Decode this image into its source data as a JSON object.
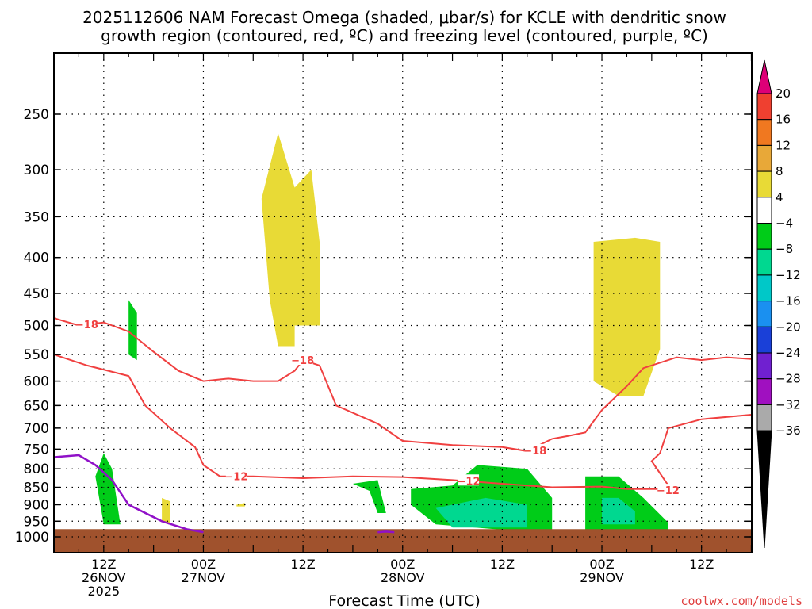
{
  "chart_data": {
    "type": "heatmap",
    "title_lines": [
      "2025112606 NAM Forecast Omega (shaded, μbar/s) for KCLE with dendritic snow",
      "growth region (contoured, red, ºC) and freezing level (contoured, purple, ºC)"
    ],
    "xlabel": "Forecast Time (UTC)",
    "ylabel": "",
    "credit": "coolwx.com/models",
    "y_axis": {
      "scale": "pressure",
      "units": "hPa",
      "range": [
        1000,
        200
      ],
      "ticks": [
        250,
        300,
        350,
        400,
        450,
        500,
        550,
        600,
        650,
        700,
        750,
        800,
        850,
        900,
        950,
        1000
      ]
    },
    "x_axis": {
      "start": "2025-11-26 06Z",
      "end": "2025-11-29 18Z",
      "ticks": [
        {
          "hour": "2025-11-26 12Z",
          "lines": [
            "12Z",
            "26NOV",
            "2025"
          ]
        },
        {
          "hour": "2025-11-27 00Z",
          "lines": [
            "00Z",
            "27NOV"
          ]
        },
        {
          "hour": "2025-11-27 12Z",
          "lines": [
            "12Z"
          ]
        },
        {
          "hour": "2025-11-28 00Z",
          "lines": [
            "00Z",
            "28NOV"
          ]
        },
        {
          "hour": "2025-11-28 12Z",
          "lines": [
            "12Z"
          ]
        },
        {
          "hour": "2025-11-29 00Z",
          "lines": [
            "00Z",
            "29NOV"
          ]
        },
        {
          "hour": "2025-11-29 12Z",
          "lines": [
            "12Z"
          ]
        }
      ]
    },
    "colorbar": {
      "units": "μbar/s",
      "ticks": [
        "20",
        "16",
        "12",
        "8",
        "4",
        "−4",
        "−8",
        "−12",
        "−16",
        "−20",
        "−24",
        "−28",
        "−32",
        "−36"
      ],
      "colors": [
        "#dd0077",
        "#ef4030",
        "#f07820",
        "#e8a838",
        "#e8da36",
        "#ffffff",
        "#00cc18",
        "#00d890",
        "#00c8c8",
        "#1a90f0",
        "#1a40d8",
        "#7020d0",
        "#a010c0",
        "#aaaaaa",
        "#000000"
      ]
    },
    "colors": {
      "dgz_contour": "#f04040",
      "freezing_level": "#9010c8",
      "ground": "#a0522d",
      "grid": "#000000"
    },
    "omega_regions": [
      {
        "category": "4 to 8",
        "color": "#e8da36",
        "outline": [
          [
            "2025-11-27 09Z",
            266
          ],
          [
            "2025-11-27 11Z",
            318
          ],
          [
            "2025-11-27 13Z",
            300
          ],
          [
            "2025-11-27 14Z",
            380
          ],
          [
            "2025-11-27 14Z",
            500
          ],
          [
            "2025-11-27 11Z",
            500
          ],
          [
            "2025-11-27 11Z",
            535
          ],
          [
            "2025-11-27 09Z",
            535
          ],
          [
            "2025-11-27 08Z",
            460
          ],
          [
            "2025-11-27 07Z",
            330
          ]
        ]
      },
      {
        "category": "4 to 8",
        "color": "#e8da36",
        "outline": [
          [
            "2025-11-28 23Z",
            380
          ],
          [
            "2025-11-29 04Z",
            375
          ],
          [
            "2025-11-29 07Z",
            380
          ],
          [
            "2025-11-29 07Z",
            540
          ],
          [
            "2025-11-29 05Z",
            630
          ],
          [
            "2025-11-29 02Z",
            630
          ],
          [
            "2025-11-28 23Z",
            600
          ]
        ]
      },
      {
        "category": "4 to 8",
        "color": "#e8da36",
        "outline": [
          [
            "2025-11-26 19Z",
            880
          ],
          [
            "2025-11-26 20Z",
            890
          ],
          [
            "2025-11-26 20Z",
            960
          ],
          [
            "2025-11-26 19Z",
            950
          ]
        ]
      },
      {
        "category": "4 to 8",
        "color": "#e8da36",
        "outline": [
          [
            "2025-11-27 04Z",
            900
          ],
          [
            "2025-11-27 05Z",
            895
          ],
          [
            "2025-11-27 05Z",
            905
          ],
          [
            "2025-11-27 04Z",
            905
          ]
        ]
      },
      {
        "category": "-4 to -8",
        "color": "#00cc18",
        "outline": [
          [
            "2025-11-26 12Z",
            760
          ],
          [
            "2025-11-26 13Z",
            800
          ],
          [
            "2025-11-26 14Z",
            960
          ],
          [
            "2025-11-26 12Z",
            960
          ],
          [
            "2025-11-26 11Z",
            820
          ]
        ]
      },
      {
        "category": "-4 to -8",
        "color": "#00cc18",
        "outline": [
          [
            "2025-11-26 15Z",
            460
          ],
          [
            "2025-11-26 16Z",
            480
          ],
          [
            "2025-11-26 16Z",
            560
          ],
          [
            "2025-11-26 15Z",
            550
          ]
        ]
      },
      {
        "category": "-4 to -8",
        "color": "#00cc18",
        "outline": [
          [
            "2025-11-27 18Z",
            840
          ],
          [
            "2025-11-27 21Z",
            830
          ],
          [
            "2025-11-27 22Z",
            925
          ],
          [
            "2025-11-27 21Z",
            925
          ],
          [
            "2025-11-27 20Z",
            860
          ]
        ]
      },
      {
        "category": "-4 to -8",
        "color": "#00cc18",
        "outline": [
          [
            "2025-11-28 01Z",
            855
          ],
          [
            "2025-11-28 06Z",
            845
          ],
          [
            "2025-11-28 09Z",
            790
          ],
          [
            "2025-11-28 15Z",
            800
          ],
          [
            "2025-11-28 18Z",
            880
          ],
          [
            "2025-11-28 18Z",
            990
          ],
          [
            "2025-11-28 04Z",
            960
          ],
          [
            "2025-11-28 01Z",
            900
          ]
        ]
      },
      {
        "category": "-4 to -8",
        "color": "#00cc18",
        "outline": [
          [
            "2025-11-28 22Z",
            820
          ],
          [
            "2025-11-29 02Z",
            820
          ],
          [
            "2025-11-29 05Z",
            880
          ],
          [
            "2025-11-29 08Z",
            955
          ],
          [
            "2025-11-29 08Z",
            985
          ],
          [
            "2025-11-28 22Z",
            985
          ]
        ]
      },
      {
        "category": "-8 to -12",
        "color": "#00d890",
        "outline": [
          [
            "2025-11-28 04Z",
            910
          ],
          [
            "2025-11-28 10Z",
            880
          ],
          [
            "2025-11-28 15Z",
            900
          ],
          [
            "2025-11-28 15Z",
            970
          ],
          [
            "2025-11-28 06Z",
            970
          ]
        ]
      },
      {
        "category": "-8 to -12",
        "color": "#00d890",
        "outline": [
          [
            "2025-11-29 00Z",
            880
          ],
          [
            "2025-11-29 02Z",
            880
          ],
          [
            "2025-11-29 04Z",
            920
          ],
          [
            "2025-11-29 04Z",
            960
          ],
          [
            "2025-11-29 00Z",
            960
          ]
        ]
      }
    ],
    "dgz_contours": [
      {
        "label": "−18",
        "points": [
          [
            "2025-11-26 06Z",
            488
          ],
          [
            "2025-11-26 09Z",
            500
          ],
          [
            "2025-11-26 12Z",
            495
          ],
          [
            "2025-11-26 15Z",
            510
          ],
          [
            "2025-11-26 18Z",
            545
          ],
          [
            "2025-11-26 21Z",
            580
          ],
          [
            "2025-11-27 00Z",
            600
          ],
          [
            "2025-11-27 03Z",
            595
          ],
          [
            "2025-11-27 06Z",
            600
          ],
          [
            "2025-11-27 09Z",
            600
          ],
          [
            "2025-11-27 11Z",
            580
          ],
          [
            "2025-11-27 12Z",
            560
          ],
          [
            "2025-11-27 14Z",
            570
          ],
          [
            "2025-11-27 16Z",
            650
          ],
          [
            "2025-11-27 21Z",
            690
          ],
          [
            "2025-11-28 00Z",
            730
          ],
          [
            "2025-11-28 06Z",
            740
          ],
          [
            "2025-11-28 12Z",
            745
          ],
          [
            "2025-11-28 15Z",
            755
          ],
          [
            "2025-11-28 18Z",
            725
          ],
          [
            "2025-11-28 20Z",
            718
          ],
          [
            "2025-11-28 22Z",
            710
          ],
          [
            "2025-11-29 00Z",
            660
          ],
          [
            "2025-11-29 03Z",
            610
          ],
          [
            "2025-11-29 05Z",
            575
          ],
          [
            "2025-11-29 09Z",
            555
          ],
          [
            "2025-11-29 12Z",
            560
          ],
          [
            "2025-11-29 15Z",
            555
          ],
          [
            "2025-11-29 18Z",
            558
          ]
        ]
      },
      {
        "label": "−12",
        "points": [
          [
            "2025-11-26 06Z",
            550
          ],
          [
            "2025-11-26 10Z",
            570
          ],
          [
            "2025-11-26 15Z",
            590
          ],
          [
            "2025-11-26 17Z",
            650
          ],
          [
            "2025-11-26 20Z",
            700
          ],
          [
            "2025-11-26 23Z",
            745
          ],
          [
            "2025-11-27 00Z",
            790
          ],
          [
            "2025-11-27 02Z",
            820
          ],
          [
            "2025-11-27 06Z",
            820
          ],
          [
            "2025-11-27 12Z",
            825
          ],
          [
            "2025-11-27 18Z",
            820
          ],
          [
            "2025-11-28 00Z",
            822
          ],
          [
            "2025-11-28 06Z",
            830
          ],
          [
            "2025-11-28 12Z",
            840
          ],
          [
            "2025-11-28 18Z",
            850
          ],
          [
            "2025-11-29 00Z",
            848
          ],
          [
            "2025-11-29 03Z",
            855
          ],
          [
            "2025-11-29 07Z",
            855
          ],
          [
            "2025-11-29 08Z",
            845
          ],
          [
            "2025-11-29 06Z",
            780
          ],
          [
            "2025-11-29 07Z",
            760
          ],
          [
            "2025-11-29 08Z",
            700
          ],
          [
            "2025-11-29 12Z",
            680
          ],
          [
            "2025-11-29 18Z",
            670
          ]
        ]
      }
    ],
    "dgz_labels": [
      {
        "text": "−18",
        "at": [
          "2025-11-26 09Z",
          498
        ]
      },
      {
        "text": "−18",
        "at": [
          "2025-11-27 11Z",
          560
        ]
      },
      {
        "text": "−18",
        "at": [
          "2025-11-28 15Z",
          753
        ]
      },
      {
        "text": "−12",
        "at": [
          "2025-11-27 03Z",
          820
        ]
      },
      {
        "text": "−12",
        "at": [
          "2025-11-28 07Z",
          832
        ]
      },
      {
        "text": "−12",
        "at": [
          "2025-11-29 07Z",
          858
        ]
      }
    ],
    "freezing_level": [
      {
        "points": [
          [
            "2025-11-26 06Z",
            770
          ],
          [
            "2025-11-26 09Z",
            765
          ],
          [
            "2025-11-26 11Z",
            790
          ],
          [
            "2025-11-26 13Z",
            830
          ],
          [
            "2025-11-26 15Z",
            900
          ],
          [
            "2025-11-26 19Z",
            950
          ],
          [
            "2025-11-26 22Z",
            975
          ],
          [
            "2025-11-27 00Z",
            985
          ]
        ]
      },
      {
        "points": [
          [
            "2025-11-27 21Z",
            985
          ],
          [
            "2025-11-27 22Z",
            983
          ],
          [
            "2025-11-27 23Z",
            985
          ]
        ]
      }
    ],
    "surface_pressure": 975
  }
}
